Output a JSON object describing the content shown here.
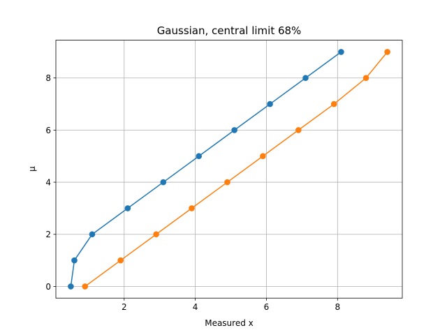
{
  "chart_data": {
    "type": "line",
    "title": "Gaussian, central limit 68%",
    "xlabel": "Measured x",
    "ylabel": "μ",
    "xlim": [
      0.08,
      9.82
    ],
    "ylim": [
      -0.45,
      9.45
    ],
    "xticks": [
      2,
      4,
      6,
      8
    ],
    "yticks": [
      0,
      2,
      4,
      6,
      8
    ],
    "grid": true,
    "series": [
      {
        "color": "#1f77b4",
        "x": [
          0.5,
          0.6,
          1.1,
          2.1,
          3.1,
          4.1,
          5.1,
          6.1,
          7.1,
          8.1
        ],
        "y": [
          0,
          1,
          2,
          3,
          4,
          5,
          6,
          7,
          8,
          9
        ]
      },
      {
        "color": "#ff7f0e",
        "x": [
          0.9,
          1.9,
          2.9,
          3.9,
          4.9,
          5.9,
          6.9,
          7.9,
          8.8,
          9.4
        ],
        "y": [
          0,
          1,
          2,
          3,
          4,
          5,
          6,
          7,
          8,
          9
        ]
      }
    ]
  }
}
